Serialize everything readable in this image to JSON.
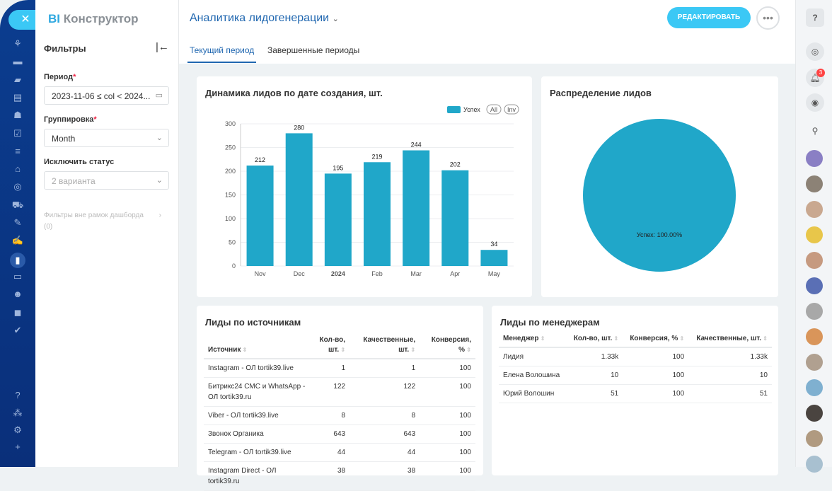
{
  "app": {
    "logo_prefix": "BI",
    "logo_name": "Конструктор"
  },
  "filters": {
    "title": "Фильтры",
    "period_label": "Период",
    "period_value": "2023-11-06 ≤ col < 2024...",
    "grouping_label": "Группировка",
    "grouping_value": "Month",
    "exclude_label": "Исключить статус",
    "exclude_value": "2 варианта",
    "outside_label": "Фильтры вне рамок дашборда",
    "outside_count": "(0)"
  },
  "header": {
    "title": "Аналитика лидогенерации",
    "edit_label": "РЕДАКТИРОВАТЬ",
    "more_label": "•••",
    "tabs": [
      {
        "label": "Текущий период",
        "active": true
      },
      {
        "label": "Завершенные периоды",
        "active": false
      }
    ]
  },
  "chart_data": [
    {
      "type": "bar",
      "title": "Динамика лидов по дате создания, шт.",
      "categories": [
        "Nov",
        "Dec",
        "2024",
        "Feb",
        "Mar",
        "Apr",
        "May"
      ],
      "series": [
        {
          "name": "Успех",
          "values": [
            212,
            280,
            195,
            219,
            244,
            202,
            34
          ]
        }
      ],
      "ylim": [
        0,
        300
      ],
      "yticks": [
        0,
        50,
        100,
        150,
        200,
        250,
        300
      ],
      "legend": "top-right",
      "legend_buttons": [
        "All",
        "Inv"
      ],
      "color": "#20a7c9"
    },
    {
      "type": "pie",
      "title": "Распределение лидов",
      "slices": [
        {
          "name": "Успех",
          "value": 100.0,
          "label": "Успех: 100.00%"
        }
      ],
      "color": "#20a7c9"
    }
  ],
  "sources": {
    "title": "Лиды по источникам",
    "columns": [
      [
        "Источник"
      ],
      [
        "Кол-во,",
        "шт."
      ],
      [
        "Качественные,",
        "шт."
      ],
      [
        "Конверсия,",
        "%"
      ]
    ],
    "rows": [
      [
        "Instagram - ОЛ tortik39.live",
        "1",
        "1",
        "100"
      ],
      [
        "Битрикс24 СМС и WhatsApp - ОЛ tortik39.ru",
        "122",
        "122",
        "100"
      ],
      [
        "Viber - ОЛ tortik39.live",
        "8",
        "8",
        "100"
      ],
      [
        "Звонок Органика",
        "643",
        "643",
        "100"
      ],
      [
        "Telegram - ОЛ tortik39.live",
        "44",
        "44",
        "100"
      ],
      [
        "Instagram Direct - ОЛ tortik39.ru",
        "38",
        "38",
        "100"
      ]
    ]
  },
  "managers": {
    "title": "Лиды по менеджерам",
    "columns": [
      "Менеджер",
      "Кол-во, шт.",
      "Конверсия, %",
      "Качественные, шт."
    ],
    "rows": [
      [
        "Лидия",
        "1.33k",
        "100",
        "1.33k"
      ],
      [
        "Елена Волошина",
        "10",
        "100",
        "10"
      ],
      [
        "Юрий Волошин",
        "51",
        "100",
        "51"
      ]
    ]
  },
  "rightbar": {
    "notifications_count": "3"
  }
}
